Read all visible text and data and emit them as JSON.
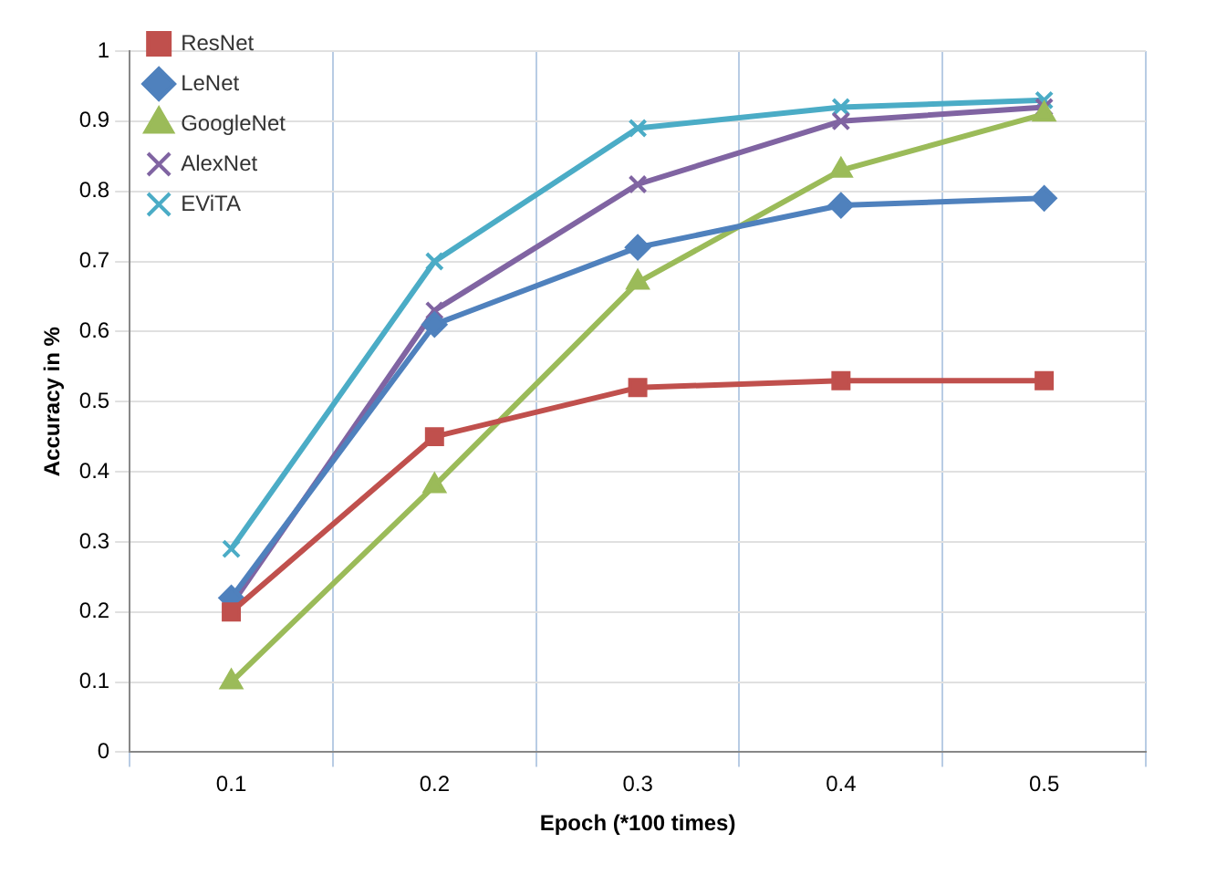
{
  "chart_data": {
    "type": "line",
    "xlabel": "Epoch (*100 times)",
    "ylabel": "Accuracy in %",
    "categories": [
      "0.1",
      "0.2",
      "0.3",
      "0.4",
      "0.5"
    ],
    "ylim": [
      0,
      1
    ],
    "yticks": [
      0,
      0.1,
      0.2,
      0.3,
      0.4,
      0.5,
      0.6,
      0.7,
      0.8,
      0.9,
      1
    ],
    "grid": true,
    "legend": "top left",
    "line_style": "solid",
    "series": [
      {
        "name": "ResNet",
        "color": "#c0504d",
        "marker": "square",
        "values": [
          0.2,
          0.45,
          0.52,
          0.53,
          0.53
        ]
      },
      {
        "name": "LeNet",
        "color": "#4f81bd",
        "marker": "diamond",
        "values": [
          0.22,
          0.61,
          0.72,
          0.78,
          0.79
        ]
      },
      {
        "name": "GoogleNet",
        "color": "#9bbb59",
        "marker": "triangle",
        "values": [
          0.1,
          0.38,
          0.67,
          0.83,
          0.91
        ]
      },
      {
        "name": "AlexNet",
        "color": "#8064a2",
        "marker": "cross",
        "values": [
          0.21,
          0.63,
          0.81,
          0.9,
          0.92
        ]
      },
      {
        "name": "EViTA",
        "color": "#4bacc6",
        "marker": "cross",
        "values": [
          0.29,
          0.7,
          0.89,
          0.92,
          0.93
        ]
      }
    ]
  }
}
